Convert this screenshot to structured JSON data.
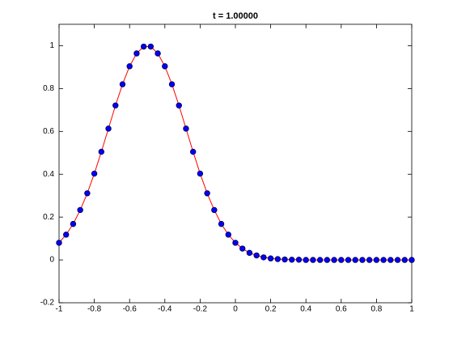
{
  "chart_data": {
    "type": "line",
    "title": "t = 1.00000",
    "x": [
      -1,
      -0.96,
      -0.92,
      -0.88,
      -0.84,
      -0.8,
      -0.76,
      -0.72,
      -0.68,
      -0.64,
      -0.6,
      -0.56,
      -0.52,
      -0.48,
      -0.44,
      -0.4,
      -0.36,
      -0.32,
      -0.28,
      -0.24,
      -0.2,
      -0.16,
      -0.12,
      -0.08,
      -0.04,
      0,
      0.04,
      0.08,
      0.12,
      0.16,
      0.2,
      0.24,
      0.28,
      0.32,
      0.36,
      0.4,
      0.44,
      0.48,
      0.52,
      0.56,
      0.6,
      0.64,
      0.68,
      0.72,
      0.76,
      0.8,
      0.84,
      0.88,
      0.92,
      0.96,
      1
    ],
    "series": [
      {
        "color": "#ff0000",
        "marker_color": "#0000ff",
        "marker_edge": "#000066",
        "values": [
          0.08,
          0.118,
          0.168,
          0.233,
          0.311,
          0.403,
          0.505,
          0.613,
          0.721,
          0.82,
          0.904,
          0.964,
          0.996,
          0.996,
          0.964,
          0.904,
          0.82,
          0.721,
          0.613,
          0.505,
          0.403,
          0.311,
          0.233,
          0.168,
          0.118,
          0.08,
          0.053,
          0.033,
          0.021,
          0.012,
          0.007,
          0.004,
          0.002,
          0.001,
          0.001,
          0,
          0,
          0,
          0,
          0,
          0,
          0,
          0,
          0,
          0,
          0,
          0,
          0,
          0,
          0,
          0
        ]
      }
    ],
    "xlim": [
      -1,
      1
    ],
    "ylim": [
      -0.2,
      1.1
    ],
    "xticks": [
      -1,
      -0.8,
      -0.6,
      -0.4,
      -0.2,
      0,
      0.2,
      0.4,
      0.6,
      0.8,
      1
    ],
    "yticks": [
      -0.2,
      0,
      0.2,
      0.4,
      0.6,
      0.8,
      1
    ]
  }
}
